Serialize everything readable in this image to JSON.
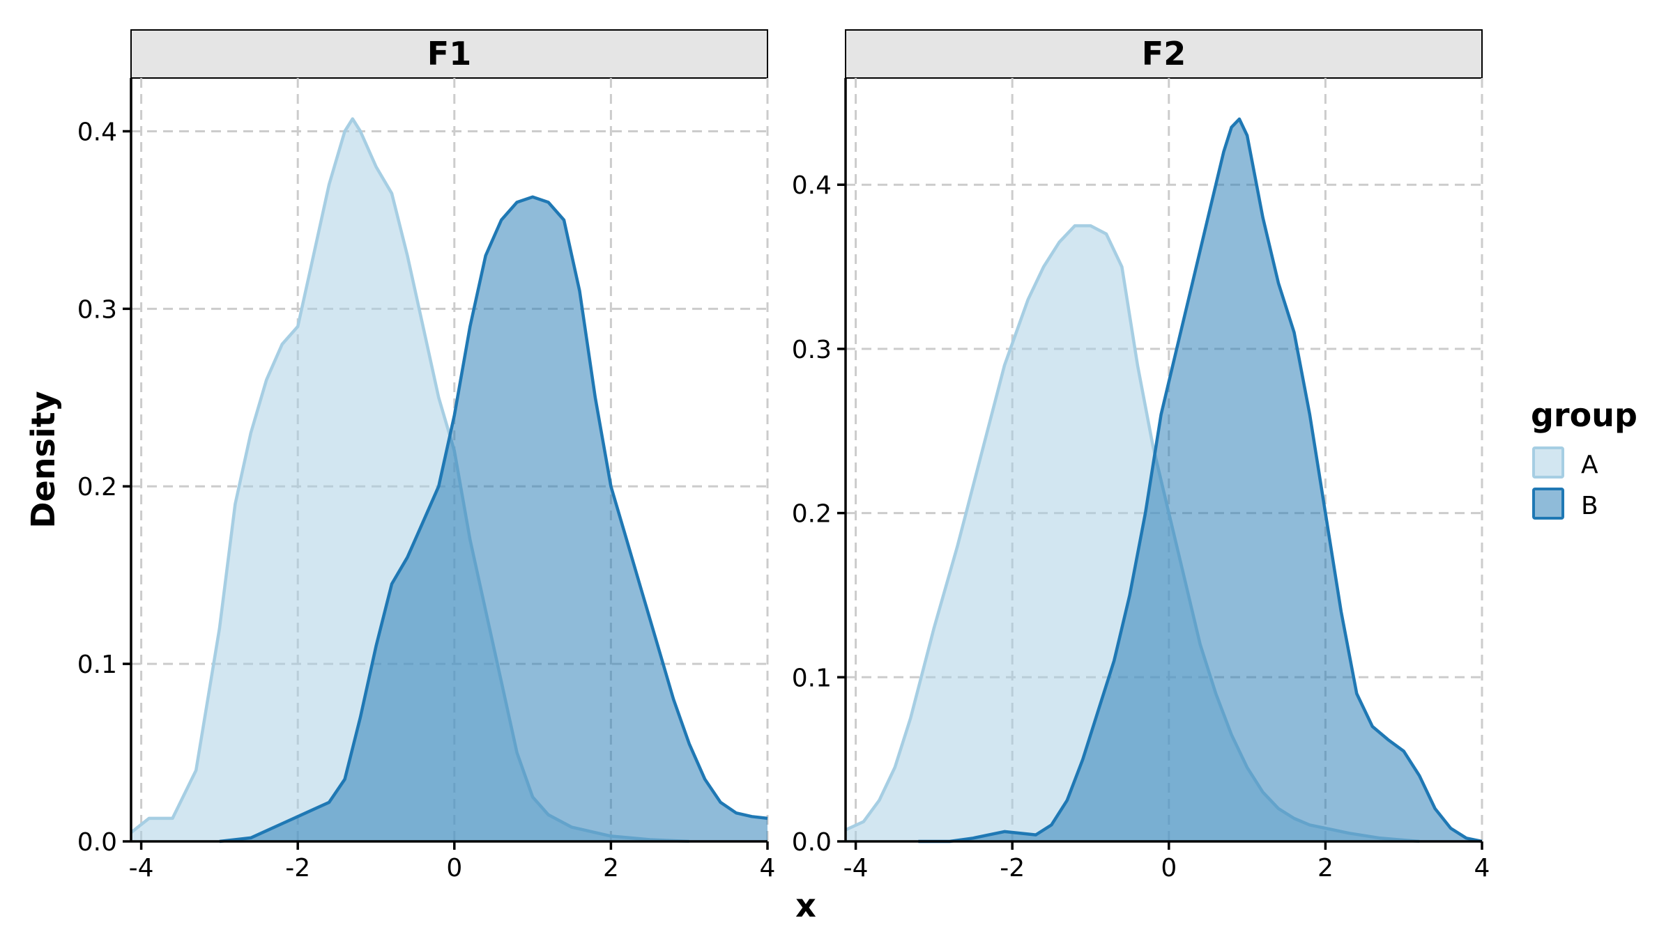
{
  "chart_data": {
    "type": "area",
    "subtype": "density",
    "xlabel": "x",
    "ylabel": "Density",
    "legend": {
      "title": "group",
      "position": "right",
      "entries": [
        "A",
        "B"
      ]
    },
    "colors": {
      "A": "#a6cee3",
      "B": "#1f78b4"
    },
    "fill_alpha": 0.5,
    "grid": true,
    "panels": [
      {
        "strip": "F1",
        "xlim": [
          -4.13,
          4.0
        ],
        "ylim": [
          0,
          0.43
        ],
        "x_ticks": [
          -4,
          -2,
          0,
          2,
          4
        ],
        "x_tick_labels": [
          "-4",
          "-2",
          "0",
          "2",
          "4"
        ],
        "y_ticks": [
          0.0,
          0.1,
          0.2,
          0.3,
          0.4
        ],
        "y_tick_labels": [
          "0.0",
          "0.1",
          "0.2",
          "0.3",
          "0.4"
        ],
        "series": [
          {
            "name": "A",
            "x": [
              -4.13,
              -3.9,
              -3.6,
              -3.3,
              -3.0,
              -2.8,
              -2.6,
              -2.4,
              -2.2,
              -2.0,
              -1.8,
              -1.6,
              -1.4,
              -1.3,
              -1.2,
              -1.0,
              -0.8,
              -0.6,
              -0.4,
              -0.2,
              0.0,
              0.2,
              0.4,
              0.6,
              0.8,
              1.0,
              1.2,
              1.5,
              2.0,
              2.5,
              3.0
            ],
            "y": [
              0.005,
              0.013,
              0.013,
              0.04,
              0.12,
              0.19,
              0.23,
              0.26,
              0.28,
              0.29,
              0.33,
              0.37,
              0.4,
              0.407,
              0.4,
              0.38,
              0.365,
              0.33,
              0.29,
              0.25,
              0.22,
              0.17,
              0.13,
              0.09,
              0.05,
              0.025,
              0.015,
              0.008,
              0.003,
              0.001,
              0.0
            ]
          },
          {
            "name": "B",
            "x": [
              -3.0,
              -2.6,
              -2.4,
              -2.2,
              -2.0,
              -1.8,
              -1.6,
              -1.4,
              -1.2,
              -1.0,
              -0.8,
              -0.6,
              -0.4,
              -0.2,
              0.0,
              0.2,
              0.4,
              0.6,
              0.8,
              1.0,
              1.2,
              1.4,
              1.6,
              1.8,
              2.0,
              2.2,
              2.4,
              2.6,
              2.8,
              3.0,
              3.2,
              3.4,
              3.6,
              3.8,
              4.0
            ],
            "y": [
              0.0,
              0.002,
              0.006,
              0.01,
              0.014,
              0.018,
              0.022,
              0.035,
              0.07,
              0.11,
              0.145,
              0.16,
              0.18,
              0.2,
              0.24,
              0.29,
              0.33,
              0.35,
              0.36,
              0.363,
              0.36,
              0.35,
              0.31,
              0.25,
              0.2,
              0.17,
              0.14,
              0.11,
              0.08,
              0.055,
              0.035,
              0.022,
              0.016,
              0.014,
              0.013
            ]
          }
        ]
      },
      {
        "strip": "F2",
        "xlim": [
          -4.13,
          4.0
        ],
        "ylim": [
          0,
          0.465
        ],
        "x_ticks": [
          -4,
          -2,
          0,
          2,
          4
        ],
        "x_tick_labels": [
          "-4",
          "-2",
          "0",
          "2",
          "4"
        ],
        "y_ticks": [
          0.0,
          0.1,
          0.2,
          0.3,
          0.4
        ],
        "y_tick_labels": [
          "0.0",
          "0.1",
          "0.2",
          "0.3",
          "0.4"
        ],
        "series": [
          {
            "name": "A",
            "x": [
              -4.13,
              -3.9,
              -3.7,
              -3.5,
              -3.3,
              -3.0,
              -2.7,
              -2.4,
              -2.1,
              -1.8,
              -1.6,
              -1.4,
              -1.2,
              -1.0,
              -0.8,
              -0.6,
              -0.4,
              -0.2,
              0.0,
              0.2,
              0.4,
              0.6,
              0.8,
              1.0,
              1.2,
              1.4,
              1.6,
              1.8,
              2.0,
              2.3,
              2.7,
              3.2
            ],
            "y": [
              0.007,
              0.012,
              0.025,
              0.045,
              0.075,
              0.13,
              0.18,
              0.235,
              0.29,
              0.33,
              0.35,
              0.365,
              0.375,
              0.375,
              0.37,
              0.35,
              0.29,
              0.24,
              0.2,
              0.16,
              0.12,
              0.09,
              0.065,
              0.045,
              0.03,
              0.02,
              0.014,
              0.01,
              0.008,
              0.005,
              0.002,
              0.0
            ]
          },
          {
            "name": "B",
            "x": [
              -3.2,
              -2.8,
              -2.5,
              -2.3,
              -2.1,
              -1.9,
              -1.7,
              -1.5,
              -1.3,
              -1.1,
              -0.9,
              -0.7,
              -0.5,
              -0.3,
              -0.1,
              0.1,
              0.3,
              0.5,
              0.7,
              0.8,
              0.9,
              1.0,
              1.2,
              1.4,
              1.6,
              1.8,
              2.0,
              2.2,
              2.4,
              2.6,
              2.8,
              3.0,
              3.2,
              3.4,
              3.6,
              3.8,
              4.0
            ],
            "y": [
              0.0,
              0.0,
              0.002,
              0.004,
              0.006,
              0.005,
              0.004,
              0.01,
              0.025,
              0.05,
              0.08,
              0.11,
              0.15,
              0.2,
              0.26,
              0.3,
              0.34,
              0.38,
              0.42,
              0.435,
              0.44,
              0.43,
              0.38,
              0.34,
              0.31,
              0.26,
              0.2,
              0.14,
              0.09,
              0.07,
              0.062,
              0.055,
              0.04,
              0.02,
              0.008,
              0.002,
              0.0
            ]
          }
        ]
      }
    ]
  }
}
